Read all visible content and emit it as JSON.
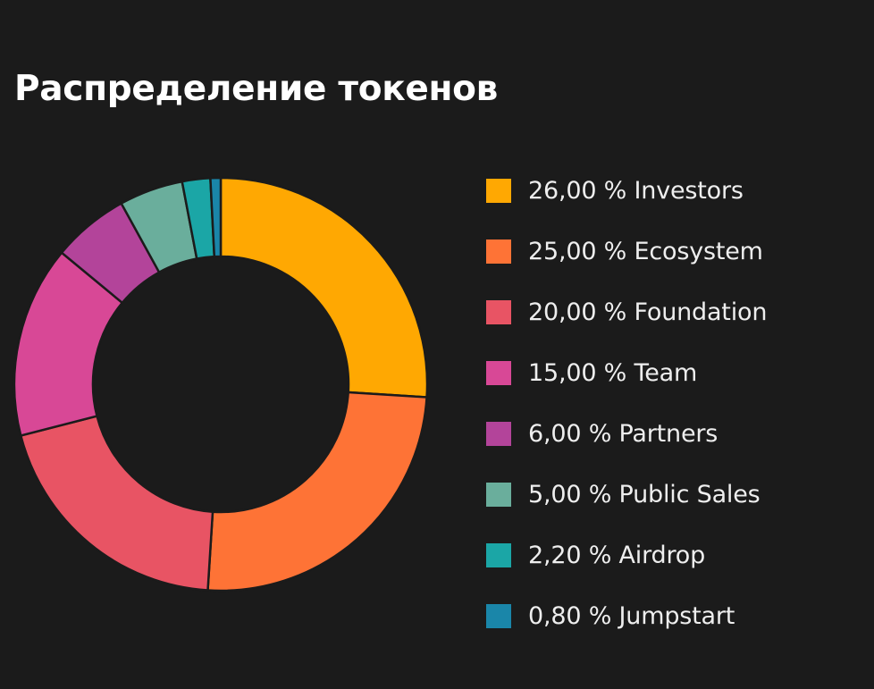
{
  "title": "Распределение токенов",
  "chart_data": {
    "type": "pie",
    "title": "Распределение токенов",
    "donut": true,
    "legend_position": "right",
    "slices": [
      {
        "label": "26,00 % Investors",
        "name": "Investors",
        "value": 26.0,
        "color": "#ffa802"
      },
      {
        "label": "25,00 % Ecosystem",
        "name": "Ecosystem",
        "value": 25.0,
        "color": "#fe7336"
      },
      {
        "label": "20,00 % Foundation",
        "name": "Foundation",
        "value": 20.0,
        "color": "#e85464"
      },
      {
        "label": "15,00 % Team",
        "name": "Team",
        "value": 15.0,
        "color": "#d84896"
      },
      {
        "label": "6,00 % Partners",
        "name": "Partners",
        "value": 6.0,
        "color": "#b3449a"
      },
      {
        "label": "5,00 % Public Sales",
        "name": "Public Sales",
        "value": 5.0,
        "color": "#6aae9c"
      },
      {
        "label": "2,20 % Airdrop",
        "name": "Airdrop",
        "value": 2.2,
        "color": "#1ba6a6"
      },
      {
        "label": "0,80 % Jumpstart",
        "name": "Jumpstart",
        "value": 0.8,
        "color": "#1a86a9"
      }
    ]
  }
}
